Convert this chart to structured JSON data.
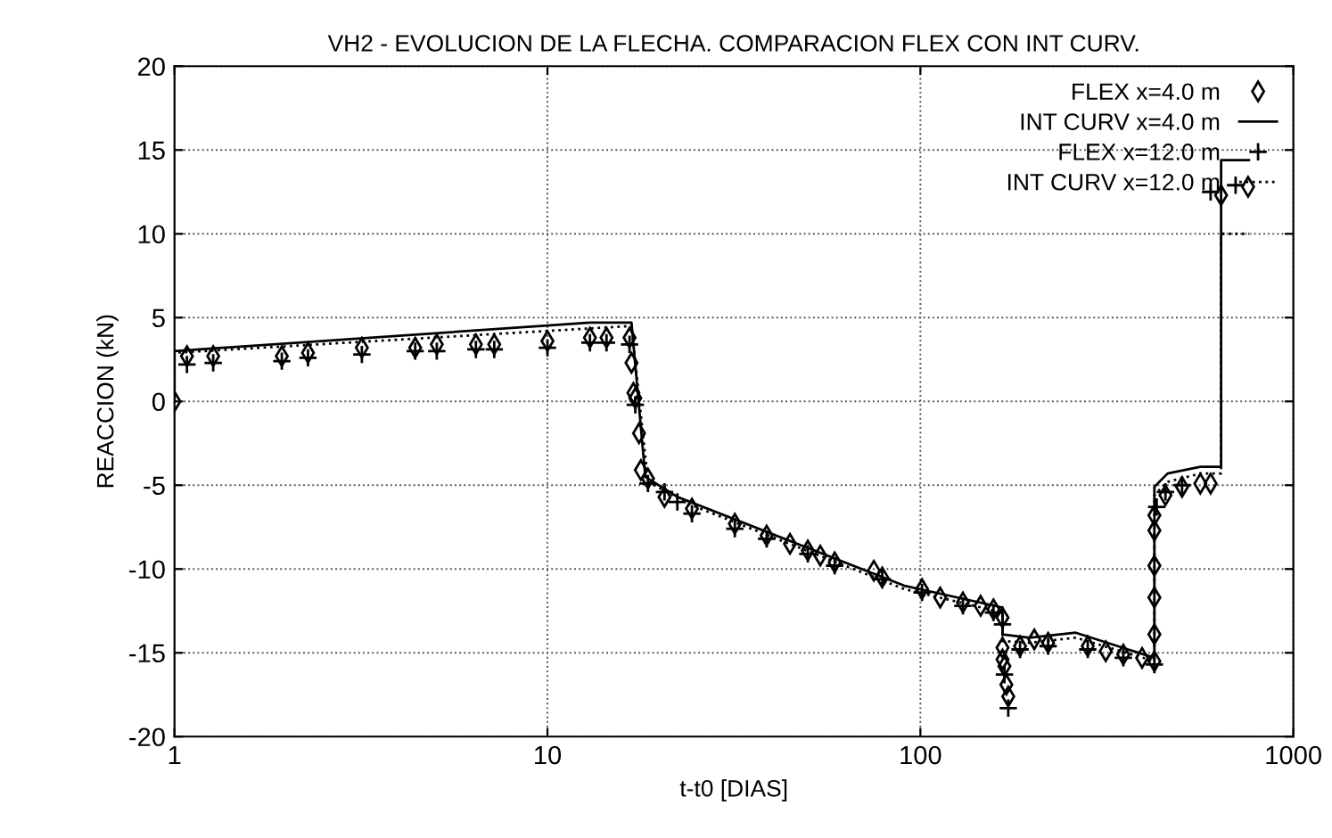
{
  "chart_data": {
    "type": "line",
    "title": "VH2 - EVOLUCION DE LA FLECHA. COMPARACION FLEX CON INT CURV.",
    "xlabel": "t-t0 [DIAS]",
    "ylabel": "REACCION (kN)",
    "log": "x",
    "xlim": [
      1,
      1000
    ],
    "xticks": [
      1,
      10,
      100,
      1000
    ],
    "ylim": [
      -20,
      20
    ],
    "yticks": [
      -20,
      -15,
      -10,
      -5,
      0,
      5,
      10,
      15,
      20
    ],
    "grid": true,
    "legend": "top right",
    "series": [
      {
        "name": "FLEX x=4.0 m",
        "type": "scatter",
        "marker": "diamond",
        "color": "#000000",
        "x": [
          1,
          1.08,
          1.27,
          1.94,
          2.28,
          3.18,
          4.42,
          5.05,
          6.43,
          7.2,
          10,
          13,
          14.4,
          16.6,
          16.8,
          17,
          17.2,
          17.6,
          17.8,
          18.6,
          20.6,
          24.4,
          31.8,
          38.7,
          44.7,
          49.9,
          53.9,
          58.9,
          75,
          79,
          101,
          113,
          130,
          145,
          157,
          166,
          166,
          166,
          168,
          170,
          172,
          185,
          202,
          220,
          281,
          314,
          350,
          393,
          424,
          424,
          424,
          424,
          424,
          424,
          454,
          503,
          563,
          600,
          640,
          756
        ],
        "values": [
          0,
          2.7,
          2.7,
          2.7,
          2.9,
          3.2,
          3.2,
          3.4,
          3.4,
          3.4,
          3.6,
          3.8,
          3.8,
          3.8,
          2.3,
          0.5,
          0.2,
          -1.9,
          -4.1,
          -4.6,
          -5.7,
          -6.4,
          -7.3,
          -8.0,
          -8.5,
          -8.9,
          -9.2,
          -9.6,
          -10.1,
          -10.5,
          -11.2,
          -11.7,
          -12.0,
          -12.2,
          -12.4,
          -12.9,
          -14.7,
          -15.4,
          -15.8,
          -16.9,
          -17.6,
          -14.6,
          -14.2,
          -14.4,
          -14.6,
          -14.9,
          -15.1,
          -15.3,
          -15.5,
          -13.9,
          -11.7,
          -9.8,
          -7.7,
          -6.8,
          -5.6,
          -5.1,
          -4.9,
          -4.9,
          12.3,
          12.8
        ]
      },
      {
        "name": "INT CURV x=4.0 m",
        "line_style": "solid",
        "color": "#000000",
        "x": [
          1,
          1,
          13,
          16.8,
          18.3,
          22.3,
          90.6,
          166,
          166,
          196,
          261,
          424,
          424,
          460,
          563,
          640,
          640,
          760
        ],
        "values": [
          0,
          3.0,
          4.7,
          4.7,
          -4.5,
          -5.7,
          -11.0,
          -12.3,
          -13.9,
          -14.1,
          -13.8,
          -15.3,
          -5.1,
          -4.3,
          -3.9,
          -3.9,
          14.4,
          14.4
        ]
      },
      {
        "name": "FLEX x=12.0 m",
        "type": "scatter",
        "marker": "cross",
        "color": "#000000",
        "x": [
          1.08,
          1.27,
          1.94,
          2.28,
          3.18,
          4.42,
          5.05,
          6.43,
          7.2,
          10,
          13,
          14.4,
          16.6,
          17.2,
          18.6,
          20.6,
          22.3,
          24.4,
          31.8,
          38.7,
          49.9,
          58.9,
          79,
          101,
          130,
          157,
          166,
          168,
          172,
          185,
          220,
          281,
          350,
          424,
          430,
          454,
          503,
          600,
          700
        ],
        "values": [
          2.2,
          2.3,
          2.4,
          2.6,
          2.8,
          3.0,
          3.0,
          3.1,
          3.1,
          3.2,
          3.5,
          3.5,
          3.4,
          -0.2,
          -4.9,
          -5.4,
          -6.0,
          -6.7,
          -7.6,
          -8.2,
          -9.1,
          -9.8,
          -10.6,
          -11.4,
          -12.2,
          -12.6,
          -13.3,
          -16.3,
          -18.3,
          -14.8,
          -14.6,
          -14.8,
          -15.3,
          -15.7,
          -6.3,
          -5.4,
          -5.0,
          12.5,
          12.9
        ]
      },
      {
        "name": "INT CURV x=12.0 m",
        "line_style": "dotted",
        "color": "#000000",
        "x": [
          1,
          1,
          16.8,
          18.6,
          24.4,
          90.6,
          166,
          166,
          196,
          261,
          424,
          424,
          460,
          563,
          640,
          640,
          760
        ],
        "values": [
          0,
          2.9,
          4.5,
          -4.8,
          -6.2,
          -11.2,
          -12.6,
          -14.3,
          -14.4,
          -14.1,
          -15.5,
          -5.6,
          -4.8,
          -4.3,
          -4.3,
          10.0,
          10.0
        ]
      }
    ]
  }
}
